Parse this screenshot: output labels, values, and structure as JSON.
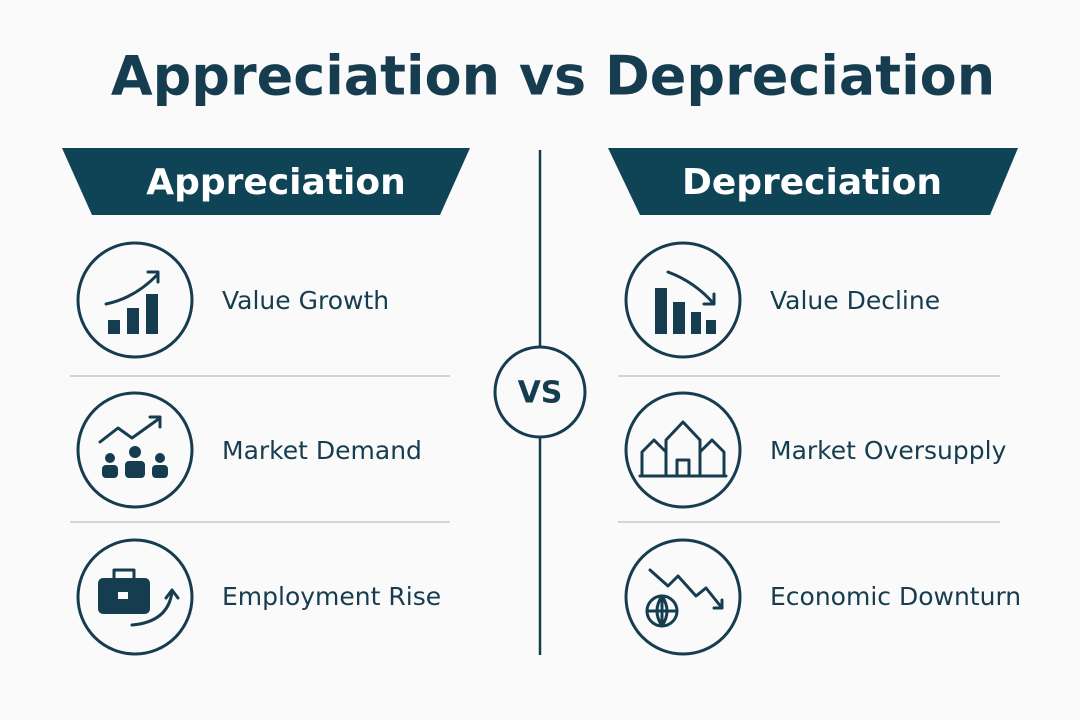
{
  "title": "Appreciation vs Depreciation",
  "left": {
    "header": "Appreciation",
    "items": [
      "Value Growth",
      "Market Demand",
      "Employment Rise"
    ]
  },
  "vs": "VS",
  "right": {
    "header": "Depreciation",
    "items": [
      "Value Decline",
      "Market Oversupply",
      "Economic Downturn"
    ]
  }
}
